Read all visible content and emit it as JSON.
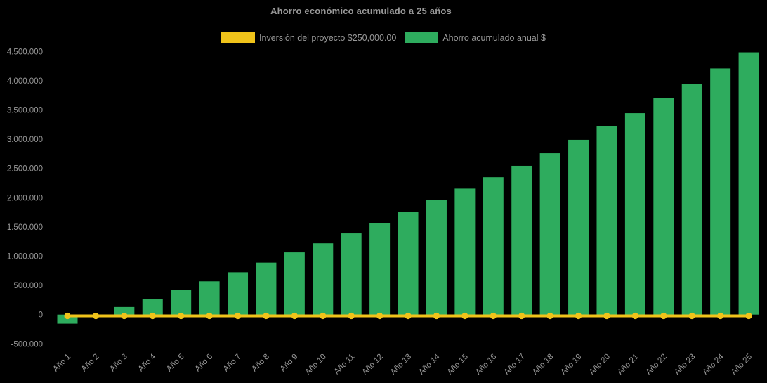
{
  "chart_data": {
    "type": "bar",
    "title": "Ahorro económico acumulado a 25 años",
    "background": "#000000",
    "text_color": "#999999",
    "grid": false,
    "legend_position": "top",
    "ylim": [
      -500000,
      4500000
    ],
    "categories": [
      "Año 1",
      "Año 2",
      "Año 3",
      "Año 4",
      "Año 5",
      "Año 6",
      "Año 7",
      "Año 8",
      "Año 9",
      "Año 10",
      "Año 11",
      "Año 12",
      "Año 13",
      "Año 14",
      "Año 15",
      "Año 16",
      "Año 17",
      "Año 18",
      "Año 19",
      "Año 20",
      "Año 21",
      "Año 22",
      "Año 23",
      "Año 24",
      "Año 25"
    ],
    "series": [
      {
        "name": "Inversión del proyecto $250,000.00",
        "type": "line",
        "color": "#f0c31a",
        "values": [
          0,
          0,
          0,
          0,
          0,
          0,
          0,
          0,
          0,
          0,
          0,
          0,
          0,
          0,
          0,
          0,
          0,
          0,
          0,
          0,
          0,
          0,
          0,
          0,
          0
        ]
      },
      {
        "name": "Ahorro acumulado anual $",
        "type": "bar",
        "color": "#2eac5e",
        "values": [
          -155000,
          0,
          130000,
          270000,
          425000,
          570000,
          725000,
          890000,
          1065000,
          1220000,
          1390000,
          1565000,
          1760000,
          1960000,
          2155000,
          2350000,
          2545000,
          2760000,
          2990000,
          3225000,
          3445000,
          3710000,
          3945000,
          4210000,
          4485000
        ]
      }
    ],
    "y_ticks": [
      {
        "value": -500000,
        "label": "-500.000"
      },
      {
        "value": 0,
        "label": "0"
      },
      {
        "value": 500000,
        "label": "500.000"
      },
      {
        "value": 1000000,
        "label": "1.000.000"
      },
      {
        "value": 1500000,
        "label": "1.500.000"
      },
      {
        "value": 2000000,
        "label": "2.000.000"
      },
      {
        "value": 2500000,
        "label": "2.500.000"
      },
      {
        "value": 3000000,
        "label": "3.000.000"
      },
      {
        "value": 3500000,
        "label": "3.500.000"
      },
      {
        "value": 4000000,
        "label": "4.000.000"
      },
      {
        "value": 4500000,
        "label": "4.500.000"
      }
    ]
  }
}
